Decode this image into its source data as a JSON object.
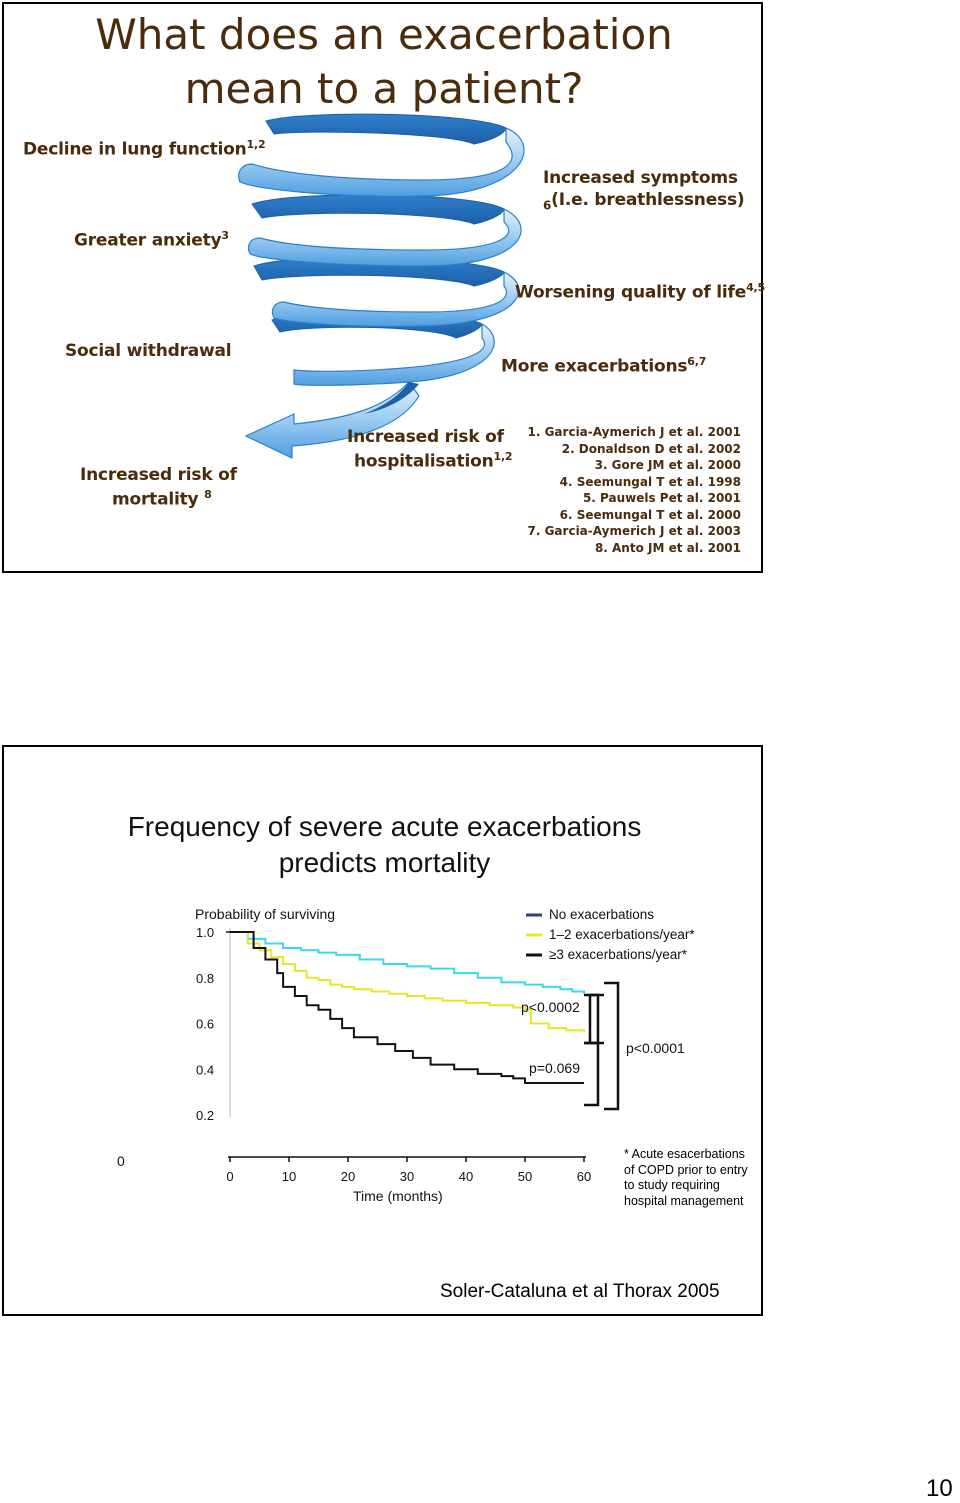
{
  "slide1": {
    "title": "What does an exacerbation mean to a patient?",
    "labels": {
      "decline": "Decline in lung function",
      "decline_sup": "1,2",
      "anxiety": "Greater anxiety",
      "anxiety_sup": "3",
      "symptoms_line1": "Increased symptoms",
      "symptoms_line2": "(I.e. breathlessness)",
      "symptoms_sup": "6",
      "qol": "Worsening quality of life",
      "qol_sup": "4,5",
      "withdrawal": "Social withdrawal",
      "more_exac": "More exacerbations",
      "more_exac_sup": "6,7",
      "hosp_line1": "Increased risk of",
      "hosp_line2": "hospitalisation",
      "hosp_sup": "1,2",
      "mort_line1": "Increased risk of",
      "mort_line2": "mortality",
      "mort_sup": "8"
    },
    "references": [
      "1. Garcia-Aymerich J et al. 2001",
      "2. Donaldson D et al. 2002",
      "3. Gore JM et al. 2000",
      "4. Seemungal T et al. 1998",
      "5. Pauwels Pet al. 2001",
      "6. Seemungal T et al. 2000",
      "7. Garcia-Aymerich J et al. 2003",
      "8. Anto JM et al. 2001"
    ],
    "colors": {
      "text": "#4a2b0c",
      "spiral": "#3f8fd6"
    }
  },
  "slide2": {
    "title_line1": "Frequency of severe acute exacerbations",
    "title_line2": "predicts mortality",
    "ylabel": "Probability of surviving",
    "xlabel": "Time (months)",
    "stray_zero": "0",
    "p1": "p<0.0002",
    "p2": "p=0.069",
    "p3": "p<0.0001",
    "footnote": [
      "* Acute esacerbations",
      "of COPD prior to entry",
      "to study requiring",
      "hospital management"
    ],
    "citation": "Soler-Cataluna et al Thorax 2005"
  },
  "chart_data": {
    "type": "line",
    "xlabel": "Time (months)",
    "ylabel": "Probability of surviving",
    "xlim": [
      0,
      60
    ],
    "ylim": [
      0.2,
      1.0
    ],
    "xticks": [
      "0",
      "10",
      "20",
      "30",
      "40",
      "50",
      "60"
    ],
    "yticks": [
      "1.0",
      "0.8",
      "0.6",
      "0.4",
      "0.2"
    ],
    "legend_position": "top-right",
    "series": [
      {
        "name": "No exacerbations",
        "color": "#2e3f8f",
        "x": [
          0,
          2,
          4,
          6,
          8,
          10,
          13,
          16,
          20,
          24,
          28,
          32,
          36,
          40,
          44,
          47,
          50,
          54,
          57,
          60
        ],
        "y": [
          1.0,
          1.0,
          0.99,
          0.985,
          0.98,
          0.975,
          0.965,
          0.955,
          0.945,
          0.94,
          0.93,
          0.92,
          0.905,
          0.89,
          0.87,
          0.85,
          0.835,
          0.825,
          0.815,
          0.81
        ]
      },
      {
        "name": "1–2 exacerbations/year*",
        "color": "#39d9ec",
        "x": [
          0,
          3,
          6,
          9,
          12,
          15,
          18,
          22,
          26,
          30,
          34,
          38,
          42,
          46,
          50,
          53,
          56,
          58,
          60
        ],
        "y": [
          1.0,
          0.97,
          0.95,
          0.93,
          0.92,
          0.91,
          0.9,
          0.88,
          0.86,
          0.85,
          0.84,
          0.82,
          0.8,
          0.78,
          0.77,
          0.76,
          0.75,
          0.74,
          0.73
        ]
      },
      {
        "name": "≥3 exacerbations/year*",
        "color": "#e8e626",
        "x": [
          0,
          3,
          5,
          7,
          9,
          11,
          13,
          15,
          17,
          19,
          21,
          24,
          27,
          30,
          33,
          36,
          40,
          44,
          48,
          50,
          51,
          54,
          57,
          60
        ],
        "y": [
          1.0,
          0.95,
          0.92,
          0.89,
          0.86,
          0.83,
          0.8,
          0.79,
          0.77,
          0.76,
          0.75,
          0.74,
          0.73,
          0.72,
          0.71,
          0.7,
          0.69,
          0.68,
          0.67,
          0.66,
          0.6,
          0.58,
          0.57,
          0.56
        ]
      },
      {
        "name": "≥3 exacerbations/year*",
        "color": "#111111",
        "x": [
          0,
          4,
          6,
          8,
          9,
          11,
          13,
          15,
          17,
          19,
          21,
          25,
          28,
          31,
          34,
          38,
          42,
          46,
          48,
          50,
          54,
          57,
          60
        ],
        "y": [
          1.0,
          0.93,
          0.88,
          0.82,
          0.76,
          0.72,
          0.68,
          0.66,
          0.62,
          0.58,
          0.54,
          0.51,
          0.48,
          0.45,
          0.42,
          0.4,
          0.38,
          0.37,
          0.36,
          0.34,
          0.34,
          0.34,
          0.34
        ]
      }
    ]
  },
  "page_number": "10"
}
